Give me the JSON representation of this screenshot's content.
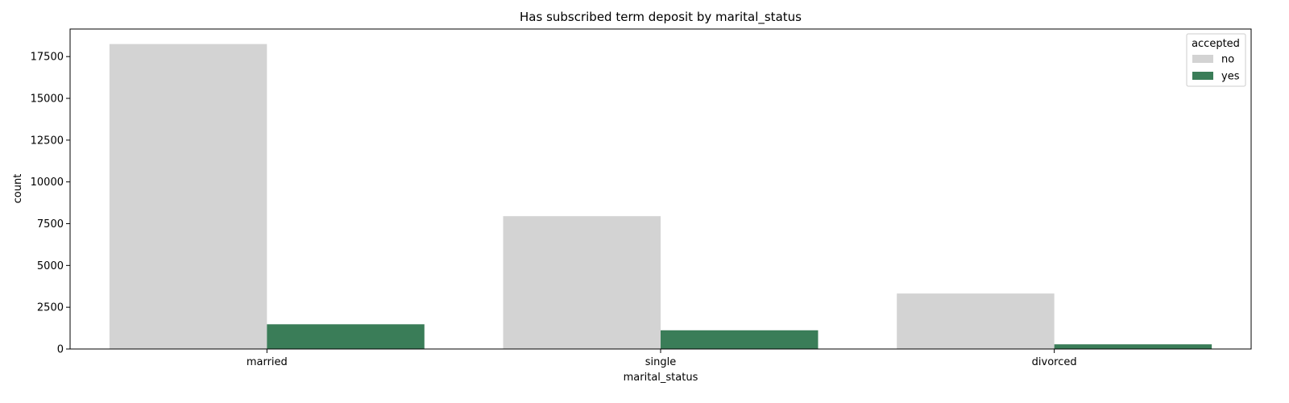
{
  "chart_data": {
    "type": "bar",
    "title": "Has subscribed term deposit by marital_status",
    "xlabel": "marital_status",
    "ylabel": "count",
    "categories": [
      "married",
      "single",
      "divorced"
    ],
    "series": [
      {
        "name": "no",
        "color": "#d3d3d3",
        "values": [
          18250,
          7950,
          3320
        ]
      },
      {
        "name": "yes",
        "color": "#3a7d58",
        "values": [
          1480,
          1120,
          280
        ]
      }
    ],
    "ylim": [
      0,
      19150
    ],
    "yticks": [
      0,
      2500,
      5000,
      7500,
      10000,
      12500,
      15000,
      17500
    ],
    "legend": {
      "title": "accepted",
      "position": "top-right"
    },
    "grid": false
  }
}
